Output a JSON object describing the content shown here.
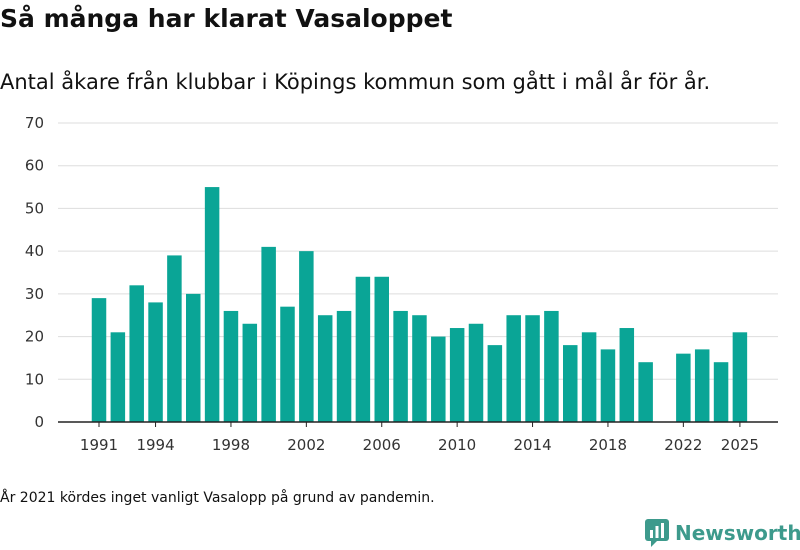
{
  "title": "Så många har klarat Vasaloppet",
  "subtitle": "Antal åkare från klubbar i Köpings kommun som gått i mål år för år.",
  "footnote": "År 2021 kördes inget vanligt Vasalopp på grund av pandemin.",
  "logo": {
    "text": "Newsworthy",
    "icon": "newsworthy-logo-icon",
    "color": "#3d9a8c"
  },
  "chart_data": {
    "type": "bar",
    "title": "Så många har klarat Vasaloppet",
    "subtitle": "Antal åkare från klubbar i Köpings kommun som gått i mål år för år.",
    "xlabel": "",
    "ylabel": "",
    "ylim": [
      0,
      70
    ],
    "yticks": [
      0,
      10,
      20,
      30,
      40,
      50,
      60,
      70
    ],
    "xticks": [
      1991,
      1994,
      1998,
      2002,
      2006,
      2010,
      2014,
      2018,
      2022,
      2025
    ],
    "grid": true,
    "bar_color": "#0aa596",
    "categories": [
      1991,
      1992,
      1993,
      1994,
      1995,
      1996,
      1997,
      1998,
      1999,
      2000,
      2001,
      2002,
      2003,
      2004,
      2005,
      2006,
      2007,
      2008,
      2009,
      2010,
      2011,
      2012,
      2013,
      2014,
      2015,
      2016,
      2017,
      2018,
      2019,
      2020,
      2021,
      2022,
      2023,
      2024,
      2025
    ],
    "values": [
      29,
      21,
      32,
      28,
      39,
      30,
      55,
      26,
      23,
      41,
      27,
      40,
      25,
      26,
      34,
      34,
      26,
      25,
      20,
      22,
      23,
      18,
      25,
      25,
      26,
      18,
      21,
      17,
      22,
      14,
      null,
      16,
      17,
      14,
      21
    ]
  }
}
